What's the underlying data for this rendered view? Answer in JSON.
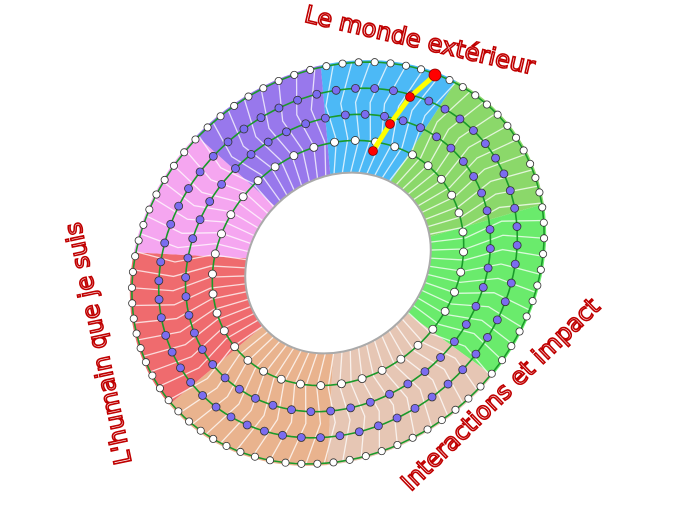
{
  "labels": {
    "top": "Le monde extérieur",
    "left": "L'humain que je suis",
    "bottom_right": "Interactions et impact"
  },
  "colors": {
    "label": "#c00000",
    "ring_line": "#1a9a2a",
    "path_line": "#ffff00",
    "path_points": "#ff0000",
    "inner_dots": "#7b6cf0",
    "outer_dots": "#ffffff",
    "sectors": [
      "#4cb9f6",
      "#8bd86a",
      "#6aeb6c",
      "#e6c6b4",
      "#e9b38e",
      "#ef6b6e",
      "#f5a6f0",
      "#9878ec"
    ]
  }
}
